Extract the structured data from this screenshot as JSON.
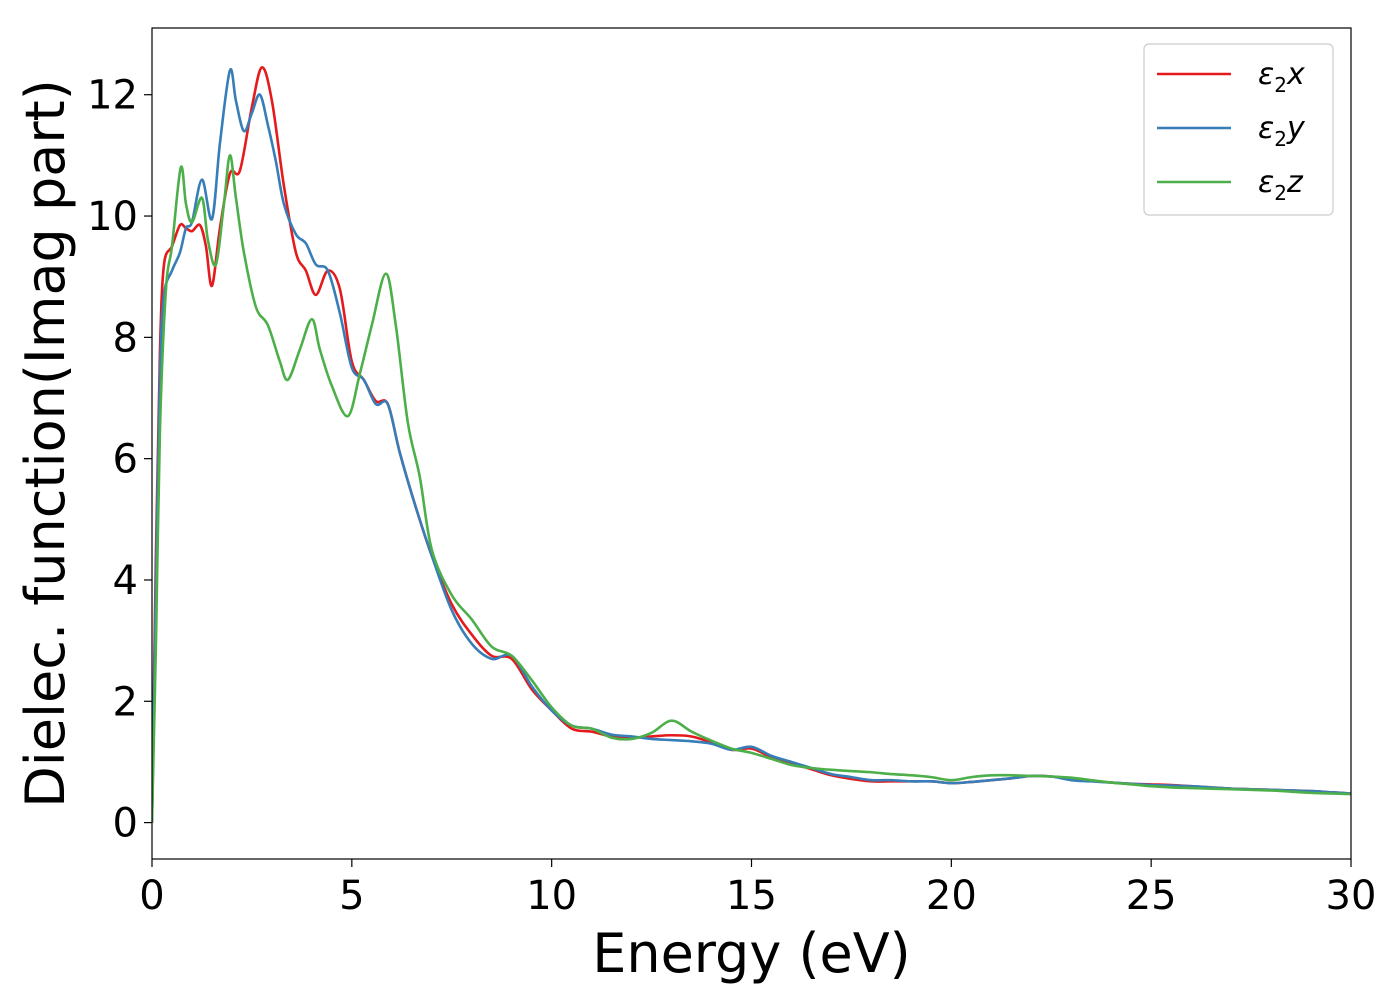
{
  "chart_data": {
    "type": "line",
    "xlabel": "Energy (eV)",
    "ylabel": "Dielec. function(Imag part)",
    "xlim": [
      0,
      30
    ],
    "ylim": [
      -0.6,
      13.1
    ],
    "xticks": [
      0,
      5,
      10,
      15,
      20,
      25,
      30
    ],
    "yticks": [
      0,
      2,
      4,
      6,
      8,
      10,
      12
    ],
    "xtick_labels": [
      "0",
      "5",
      "10",
      "15",
      "20",
      "25",
      "30"
    ],
    "ytick_labels": [
      "0",
      "2",
      "4",
      "6",
      "8",
      "10",
      "12"
    ],
    "grid": false,
    "legend_position": "top-right",
    "series": [
      {
        "name_base": "ε",
        "name_sub": "2",
        "name_suffix": "x",
        "color": "#e41a1c",
        "x": [
          0,
          0.1,
          0.2,
          0.3,
          0.5,
          0.7,
          0.85,
          1.0,
          1.2,
          1.35,
          1.5,
          1.7,
          1.95,
          2.2,
          2.5,
          2.75,
          3.0,
          3.3,
          3.6,
          3.85,
          4.1,
          4.4,
          4.7,
          5.0,
          5.3,
          5.6,
          5.9,
          6.2,
          6.6,
          7.0,
          7.5,
          8.0,
          8.5,
          9.0,
          9.5,
          10.0,
          10.5,
          11.0,
          11.5,
          12.0,
          12.5,
          13.0,
          13.5,
          14.0,
          14.5,
          15.0,
          15.5,
          16.0,
          16.5,
          17.0,
          17.5,
          18.0,
          18.5,
          19.0,
          19.5,
          20.0,
          20.5,
          21.0,
          21.5,
          22.0,
          22.5,
          23.0,
          23.5,
          24.0,
          24.5,
          25.0,
          25.5,
          26.0,
          26.5,
          27.0,
          27.5,
          28.0,
          28.5,
          29.0,
          29.5,
          30.0
        ],
        "y": [
          0,
          4.5,
          7.8,
          9.2,
          9.5,
          9.85,
          9.8,
          9.75,
          9.85,
          9.5,
          8.85,
          9.8,
          10.7,
          10.75,
          11.8,
          12.45,
          11.9,
          10.5,
          9.4,
          9.1,
          8.7,
          9.1,
          8.8,
          7.6,
          7.3,
          6.95,
          6.9,
          6.1,
          5.2,
          4.4,
          3.6,
          3.1,
          2.75,
          2.7,
          2.2,
          1.85,
          1.55,
          1.5,
          1.42,
          1.4,
          1.42,
          1.44,
          1.42,
          1.32,
          1.2,
          1.22,
          1.08,
          0.98,
          0.88,
          0.78,
          0.72,
          0.68,
          0.68,
          0.68,
          0.68,
          0.65,
          0.67,
          0.7,
          0.73,
          0.77,
          0.76,
          0.72,
          0.69,
          0.66,
          0.64,
          0.63,
          0.62,
          0.6,
          0.58,
          0.56,
          0.55,
          0.54,
          0.53,
          0.52,
          0.5,
          0.48
        ]
      },
      {
        "name_base": "ε",
        "name_sub": "2",
        "name_suffix": "y",
        "color": "#377eb8",
        "x": [
          0,
          0.1,
          0.2,
          0.3,
          0.5,
          0.7,
          0.85,
          1.0,
          1.25,
          1.5,
          1.7,
          1.95,
          2.1,
          2.3,
          2.5,
          2.7,
          2.9,
          3.1,
          3.3,
          3.6,
          3.85,
          4.1,
          4.4,
          4.7,
          5.0,
          5.3,
          5.6,
          5.9,
          6.2,
          6.6,
          7.0,
          7.5,
          8.0,
          8.5,
          9.0,
          9.5,
          10.0,
          10.5,
          11.0,
          11.5,
          12.0,
          12.5,
          13.0,
          13.5,
          14.0,
          14.5,
          15.0,
          15.5,
          16.0,
          16.5,
          17.0,
          17.5,
          18.0,
          18.5,
          19.0,
          19.5,
          20.0,
          20.5,
          21.0,
          21.5,
          22.0,
          22.5,
          23.0,
          23.5,
          24.0,
          24.5,
          25.0,
          25.5,
          26.0,
          26.5,
          27.0,
          27.5,
          28.0,
          28.5,
          29.0,
          29.5,
          30.0
        ],
        "y": [
          0,
          4.0,
          7.4,
          8.7,
          9.1,
          9.4,
          9.8,
          9.9,
          10.6,
          9.95,
          11.2,
          12.4,
          11.9,
          11.4,
          11.7,
          12.0,
          11.5,
          10.9,
          10.2,
          9.7,
          9.55,
          9.2,
          9.1,
          8.4,
          7.5,
          7.3,
          6.9,
          6.9,
          6.1,
          5.2,
          4.4,
          3.5,
          2.95,
          2.7,
          2.75,
          2.25,
          1.85,
          1.6,
          1.55,
          1.45,
          1.42,
          1.38,
          1.36,
          1.34,
          1.3,
          1.2,
          1.25,
          1.1,
          1.0,
          0.9,
          0.8,
          0.75,
          0.7,
          0.7,
          0.68,
          0.68,
          0.65,
          0.67,
          0.7,
          0.73,
          0.77,
          0.76,
          0.7,
          0.68,
          0.66,
          0.64,
          0.62,
          0.61,
          0.6,
          0.58,
          0.56,
          0.55,
          0.54,
          0.53,
          0.52,
          0.5,
          0.48
        ]
      },
      {
        "name_base": "ε",
        "name_sub": "2",
        "name_suffix": "z",
        "color": "#4daf4a",
        "x": [
          0,
          0.1,
          0.2,
          0.35,
          0.5,
          0.72,
          0.85,
          1.0,
          1.25,
          1.4,
          1.6,
          1.8,
          1.95,
          2.1,
          2.3,
          2.6,
          2.9,
          3.2,
          3.4,
          3.7,
          4.0,
          4.2,
          4.5,
          4.9,
          5.2,
          5.5,
          5.85,
          6.1,
          6.4,
          6.7,
          7.0,
          7.5,
          8.0,
          8.5,
          9.0,
          9.5,
          10.0,
          10.5,
          11.0,
          11.5,
          12.0,
          12.5,
          13.0,
          13.5,
          14.0,
          14.5,
          15.0,
          15.5,
          16.0,
          16.5,
          17.0,
          17.5,
          18.0,
          18.5,
          19.0,
          19.5,
          20.0,
          20.5,
          21.0,
          21.5,
          22.0,
          22.5,
          23.0,
          23.5,
          24.0,
          24.5,
          25.0,
          25.5,
          26.0,
          26.5,
          27.0,
          27.5,
          28.0,
          28.5,
          29.0,
          29.5,
          30.0
        ],
        "y": [
          0,
          3.0,
          6.5,
          8.8,
          9.5,
          10.8,
          10.2,
          9.9,
          10.3,
          9.6,
          9.2,
          10.2,
          11.0,
          10.3,
          9.4,
          8.5,
          8.2,
          7.6,
          7.3,
          7.8,
          8.3,
          7.8,
          7.2,
          6.7,
          7.4,
          8.2,
          9.05,
          8.2,
          6.6,
          5.7,
          4.5,
          3.75,
          3.35,
          2.9,
          2.75,
          2.35,
          1.9,
          1.6,
          1.55,
          1.4,
          1.38,
          1.48,
          1.68,
          1.5,
          1.35,
          1.22,
          1.15,
          1.05,
          0.95,
          0.9,
          0.87,
          0.85,
          0.83,
          0.8,
          0.78,
          0.75,
          0.7,
          0.75,
          0.78,
          0.78,
          0.77,
          0.76,
          0.74,
          0.7,
          0.66,
          0.63,
          0.6,
          0.58,
          0.57,
          0.56,
          0.55,
          0.54,
          0.53,
          0.51,
          0.49,
          0.48,
          0.47
        ]
      }
    ]
  }
}
